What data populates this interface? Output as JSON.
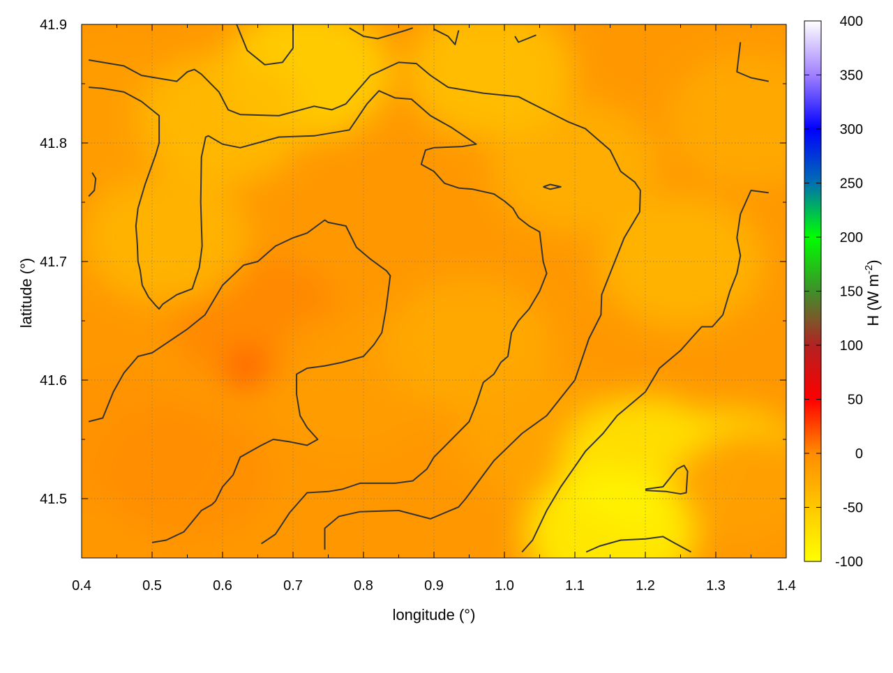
{
  "chart_data": {
    "type": "heatmap",
    "title": "",
    "xlabel": "longitude (°)",
    "ylabel": "latitude (°)",
    "xlim": [
      0.4,
      1.4
    ],
    "ylim": [
      41.45,
      41.9
    ],
    "x_ticks": [
      "0.4",
      "0.5",
      "0.6",
      "0.7",
      "0.8",
      "0.9",
      "1.0",
      "1.1",
      "1.2",
      "1.3",
      "1.4"
    ],
    "y_ticks": [
      "41.5",
      "41.6",
      "41.7",
      "41.8",
      "41.9"
    ],
    "grid": true,
    "colorbar": {
      "label": "H (W m-2)",
      "range": [
        -100,
        400
      ],
      "ticks": [
        "-100",
        "-50",
        "0",
        "50",
        "100",
        "150",
        "200",
        "250",
        "300",
        "350",
        "400"
      ],
      "stops": [
        {
          "value": -100,
          "color": "#ffff00"
        },
        {
          "value": -50,
          "color": "#ffc800"
        },
        {
          "value": 0,
          "color": "#ff8c00"
        },
        {
          "value": 50,
          "color": "#ff0000"
        },
        {
          "value": 100,
          "color": "#b22222"
        },
        {
          "value": 125,
          "color": "#7a5a2a"
        },
        {
          "value": 150,
          "color": "#3f8f2a"
        },
        {
          "value": 200,
          "color": "#00ff00"
        },
        {
          "value": 250,
          "color": "#0070b0"
        },
        {
          "value": 300,
          "color": "#0000ff"
        },
        {
          "value": 350,
          "color": "#a080ff"
        },
        {
          "value": 400,
          "color": "#ffffff"
        }
      ]
    },
    "field_points": [
      {
        "x": 0.45,
        "y": 41.55,
        "v": -5
      },
      {
        "x": 0.55,
        "y": 41.52,
        "v": -2
      },
      {
        "x": 0.65,
        "y": 41.65,
        "v": 2
      },
      {
        "x": 0.63,
        "y": 41.61,
        "v": 45
      },
      {
        "x": 0.67,
        "y": 41.61,
        "v": 45
      },
      {
        "x": 0.52,
        "y": 41.72,
        "v": -35
      },
      {
        "x": 0.45,
        "y": 41.82,
        "v": -15
      },
      {
        "x": 0.72,
        "y": 41.86,
        "v": -60
      },
      {
        "x": 0.85,
        "y": 41.75,
        "v": -10
      },
      {
        "x": 0.78,
        "y": 41.6,
        "v": -15
      },
      {
        "x": 0.95,
        "y": 41.63,
        "v": -25
      },
      {
        "x": 1.1,
        "y": 41.78,
        "v": -30
      },
      {
        "x": 1.25,
        "y": 41.7,
        "v": -35
      },
      {
        "x": 1.35,
        "y": 41.82,
        "v": -25
      },
      {
        "x": 1.05,
        "y": 41.55,
        "v": -20
      },
      {
        "x": 1.2,
        "y": 41.53,
        "v": -80
      },
      {
        "x": 1.32,
        "y": 41.52,
        "v": -70
      },
      {
        "x": 1.35,
        "y": 41.5,
        "v": -10
      },
      {
        "x": 1.15,
        "y": 41.47,
        "v": -90
      },
      {
        "x": 0.9,
        "y": 41.48,
        "v": -10
      },
      {
        "x": 0.6,
        "y": 41.82,
        "v": -40
      },
      {
        "x": 0.98,
        "y": 41.86,
        "v": -45
      }
    ],
    "contours": [
      [
        [
          0.41,
          41.87
        ],
        [
          0.46,
          41.865
        ],
        [
          0.485,
          41.857
        ],
        [
          0.535,
          41.852
        ],
        [
          0.55,
          41.86
        ],
        [
          0.56,
          41.862
        ],
        [
          0.57,
          41.858
        ],
        [
          0.595,
          41.843
        ],
        [
          0.608,
          41.828
        ],
        [
          0.625,
          41.824
        ],
        [
          0.68,
          41.823
        ],
        [
          0.73,
          41.831
        ],
        [
          0.755,
          41.828
        ],
        [
          0.775,
          41.833
        ],
        [
          0.785,
          41.84
        ],
        [
          0.81,
          41.857
        ],
        [
          0.85,
          41.868
        ],
        [
          0.875,
          41.867
        ],
        [
          0.895,
          41.857
        ],
        [
          0.92,
          41.847
        ],
        [
          0.97,
          41.842
        ],
        [
          1.02,
          41.839
        ],
        [
          1.05,
          41.83
        ],
        [
          1.09,
          41.818
        ],
        [
          1.115,
          41.812
        ],
        [
          1.15,
          41.794
        ],
        [
          1.165,
          41.776
        ],
        [
          1.185,
          41.767
        ],
        [
          1.193,
          41.76
        ],
        [
          1.192,
          41.742
        ],
        [
          1.17,
          41.72
        ],
        [
          1.15,
          41.69
        ],
        [
          1.138,
          41.672
        ],
        [
          1.137,
          41.655
        ],
        [
          1.12,
          41.635
        ],
        [
          1.1,
          41.6
        ],
        [
          1.08,
          41.585
        ],
        [
          1.06,
          41.57
        ],
        [
          1.025,
          41.555
        ],
        [
          0.985,
          41.532
        ],
        [
          0.945,
          41.5
        ],
        [
          0.935,
          41.493
        ],
        [
          0.915,
          41.488
        ],
        [
          0.895,
          41.483
        ],
        [
          0.85,
          41.49
        ],
        [
          0.795,
          41.489
        ],
        [
          0.765,
          41.485
        ],
        [
          0.745,
          41.475
        ],
        [
          0.745,
          41.457
        ]
      ],
      [
        [
          0.41,
          41.847
        ],
        [
          0.43,
          41.846
        ],
        [
          0.46,
          41.843
        ],
        [
          0.485,
          41.835
        ],
        [
          0.51,
          41.823
        ],
        [
          0.51,
          41.8
        ],
        [
          0.505,
          41.79
        ],
        [
          0.49,
          41.765
        ],
        [
          0.48,
          41.745
        ],
        [
          0.477,
          41.73
        ],
        [
          0.479,
          41.715
        ],
        [
          0.48,
          41.7
        ],
        [
          0.483,
          41.693
        ],
        [
          0.486,
          41.68
        ],
        [
          0.495,
          41.67
        ],
        [
          0.505,
          41.663
        ],
        [
          0.51,
          41.66
        ],
        [
          0.515,
          41.664
        ],
        [
          0.535,
          41.672
        ],
        [
          0.557,
          41.677
        ],
        [
          0.567,
          41.695
        ],
        [
          0.571,
          41.713
        ],
        [
          0.569,
          41.75
        ],
        [
          0.57,
          41.788
        ],
        [
          0.576,
          41.805
        ],
        [
          0.58,
          41.806
        ],
        [
          0.6,
          41.799
        ],
        [
          0.625,
          41.796
        ],
        [
          0.68,
          41.805
        ],
        [
          0.73,
          41.806
        ],
        [
          0.78,
          41.811
        ],
        [
          0.805,
          41.833
        ],
        [
          0.822,
          41.844
        ],
        [
          0.845,
          41.838
        ],
        [
          0.868,
          41.837
        ],
        [
          0.895,
          41.823
        ],
        [
          0.925,
          41.813
        ],
        [
          0.96,
          41.799
        ],
        [
          0.94,
          41.797
        ],
        [
          0.9,
          41.796
        ],
        [
          0.888,
          41.794
        ],
        [
          0.882,
          41.782
        ],
        [
          0.9,
          41.776
        ],
        [
          0.915,
          41.766
        ],
        [
          0.935,
          41.762
        ],
        [
          0.955,
          41.761
        ],
        [
          0.985,
          41.757
        ],
        [
          1.0,
          41.751
        ],
        [
          1.012,
          41.745
        ],
        [
          1.02,
          41.737
        ],
        [
          1.035,
          41.73
        ],
        [
          1.05,
          41.725
        ],
        [
          1.055,
          41.7
        ],
        [
          1.06,
          41.69
        ],
        [
          1.05,
          41.675
        ],
        [
          1.035,
          41.66
        ],
        [
          1.02,
          41.65
        ],
        [
          1.01,
          41.64
        ],
        [
          1.005,
          41.62
        ],
        [
          0.995,
          41.615
        ],
        [
          0.985,
          41.605
        ],
        [
          0.97,
          41.598
        ],
        [
          0.96,
          41.58
        ],
        [
          0.95,
          41.565
        ],
        [
          0.925,
          41.55
        ],
        [
          0.9,
          41.535
        ],
        [
          0.89,
          41.525
        ],
        [
          0.87,
          41.515
        ],
        [
          0.845,
          41.513
        ],
        [
          0.795,
          41.513
        ],
        [
          0.77,
          41.508
        ],
        [
          0.75,
          41.506
        ],
        [
          0.72,
          41.505
        ],
        [
          0.695,
          41.488
        ],
        [
          0.675,
          41.47
        ],
        [
          0.655,
          41.462
        ]
      ],
      [
        [
          0.41,
          41.565
        ],
        [
          0.43,
          41.568
        ],
        [
          0.445,
          41.59
        ],
        [
          0.46,
          41.606
        ],
        [
          0.48,
          41.62
        ],
        [
          0.5,
          41.623
        ],
        [
          0.525,
          41.633
        ],
        [
          0.55,
          41.643
        ],
        [
          0.575,
          41.655
        ],
        [
          0.6,
          41.68
        ],
        [
          0.63,
          41.697
        ],
        [
          0.65,
          41.7
        ],
        [
          0.675,
          41.713
        ],
        [
          0.7,
          41.72
        ],
        [
          0.72,
          41.724
        ],
        [
          0.745,
          41.735
        ],
        [
          0.75,
          41.733
        ],
        [
          0.775,
          41.73
        ],
        [
          0.79,
          41.712
        ],
        [
          0.81,
          41.702
        ],
        [
          0.833,
          41.692
        ],
        [
          0.838,
          41.688
        ],
        [
          0.832,
          41.66
        ],
        [
          0.826,
          41.64
        ],
        [
          0.815,
          41.63
        ],
        [
          0.8,
          41.62
        ],
        [
          0.77,
          41.615
        ],
        [
          0.745,
          41.612
        ],
        [
          0.72,
          41.61
        ],
        [
          0.705,
          41.605
        ],
        [
          0.705,
          41.588
        ],
        [
          0.71,
          41.57
        ],
        [
          0.72,
          41.56
        ],
        [
          0.735,
          41.55
        ],
        [
          0.72,
          41.545
        ],
        [
          0.695,
          41.548
        ],
        [
          0.672,
          41.55
        ],
        [
          0.655,
          41.545
        ],
        [
          0.64,
          41.54
        ],
        [
          0.625,
          41.535
        ],
        [
          0.615,
          41.52
        ],
        [
          0.6,
          41.51
        ],
        [
          0.59,
          41.498
        ],
        [
          0.585,
          41.495
        ],
        [
          0.57,
          41.49
        ],
        [
          0.545,
          41.472
        ],
        [
          0.52,
          41.465
        ],
        [
          0.5,
          41.463
        ]
      ],
      [
        [
          1.116,
          41.455
        ],
        [
          1.135,
          41.46
        ],
        [
          1.165,
          41.465
        ],
        [
          1.2,
          41.466
        ],
        [
          1.225,
          41.468
        ],
        [
          1.24,
          41.463
        ],
        [
          1.265,
          41.455
        ]
      ],
      [
        [
          1.2,
          41.508
        ],
        [
          1.225,
          41.51
        ],
        [
          1.245,
          41.525
        ],
        [
          1.255,
          41.528
        ],
        [
          1.26,
          41.523
        ],
        [
          1.258,
          41.505
        ],
        [
          1.25,
          41.504
        ],
        [
          1.23,
          41.506
        ],
        [
          1.2,
          41.507
        ]
      ],
      [
        [
          1.025,
          41.455
        ],
        [
          1.04,
          41.465
        ],
        [
          1.06,
          41.49
        ],
        [
          1.08,
          41.51
        ],
        [
          1.1,
          41.527
        ],
        [
          1.115,
          41.54
        ],
        [
          1.14,
          41.555
        ],
        [
          1.16,
          41.57
        ],
        [
          1.18,
          41.58
        ],
        [
          1.2,
          41.59
        ],
        [
          1.22,
          41.61
        ],
        [
          1.23,
          41.615
        ],
        [
          1.25,
          41.625
        ],
        [
          1.265,
          41.635
        ],
        [
          1.28,
          41.645
        ],
        [
          1.295,
          41.645
        ],
        [
          1.31,
          41.655
        ],
        [
          1.32,
          41.675
        ],
        [
          1.33,
          41.69
        ],
        [
          1.335,
          41.705
        ],
        [
          1.33,
          41.72
        ],
        [
          1.335,
          41.74
        ],
        [
          1.35,
          41.76
        ],
        [
          1.375,
          41.758
        ]
      ],
      [
        [
          1.055,
          41.763
        ],
        [
          1.065,
          41.765
        ],
        [
          1.08,
          41.763
        ],
        [
          1.065,
          41.761
        ],
        [
          1.055,
          41.763
        ]
      ],
      [
        [
          0.41,
          41.755
        ],
        [
          0.418,
          41.76
        ],
        [
          0.42,
          41.77
        ],
        [
          0.415,
          41.775
        ]
      ],
      [
        [
          0.62,
          41.9
        ],
        [
          0.635,
          41.878
        ],
        [
          0.66,
          41.866
        ],
        [
          0.685,
          41.868
        ],
        [
          0.7,
          41.88
        ],
        [
          0.7,
          41.9
        ]
      ],
      [
        [
          0.78,
          41.897
        ],
        [
          0.8,
          41.89
        ],
        [
          0.82,
          41.888
        ],
        [
          0.86,
          41.895
        ],
        [
          0.87,
          41.897
        ]
      ],
      [
        [
          0.9,
          41.896
        ],
        [
          0.92,
          41.89
        ],
        [
          0.93,
          41.883
        ],
        [
          0.935,
          41.895
        ]
      ],
      [
        [
          1.015,
          41.89
        ],
        [
          1.02,
          41.885
        ],
        [
          1.045,
          41.891
        ]
      ],
      [
        [
          1.335,
          41.885
        ],
        [
          1.33,
          41.86
        ],
        [
          1.35,
          41.855
        ],
        [
          1.375,
          41.852
        ]
      ]
    ]
  }
}
